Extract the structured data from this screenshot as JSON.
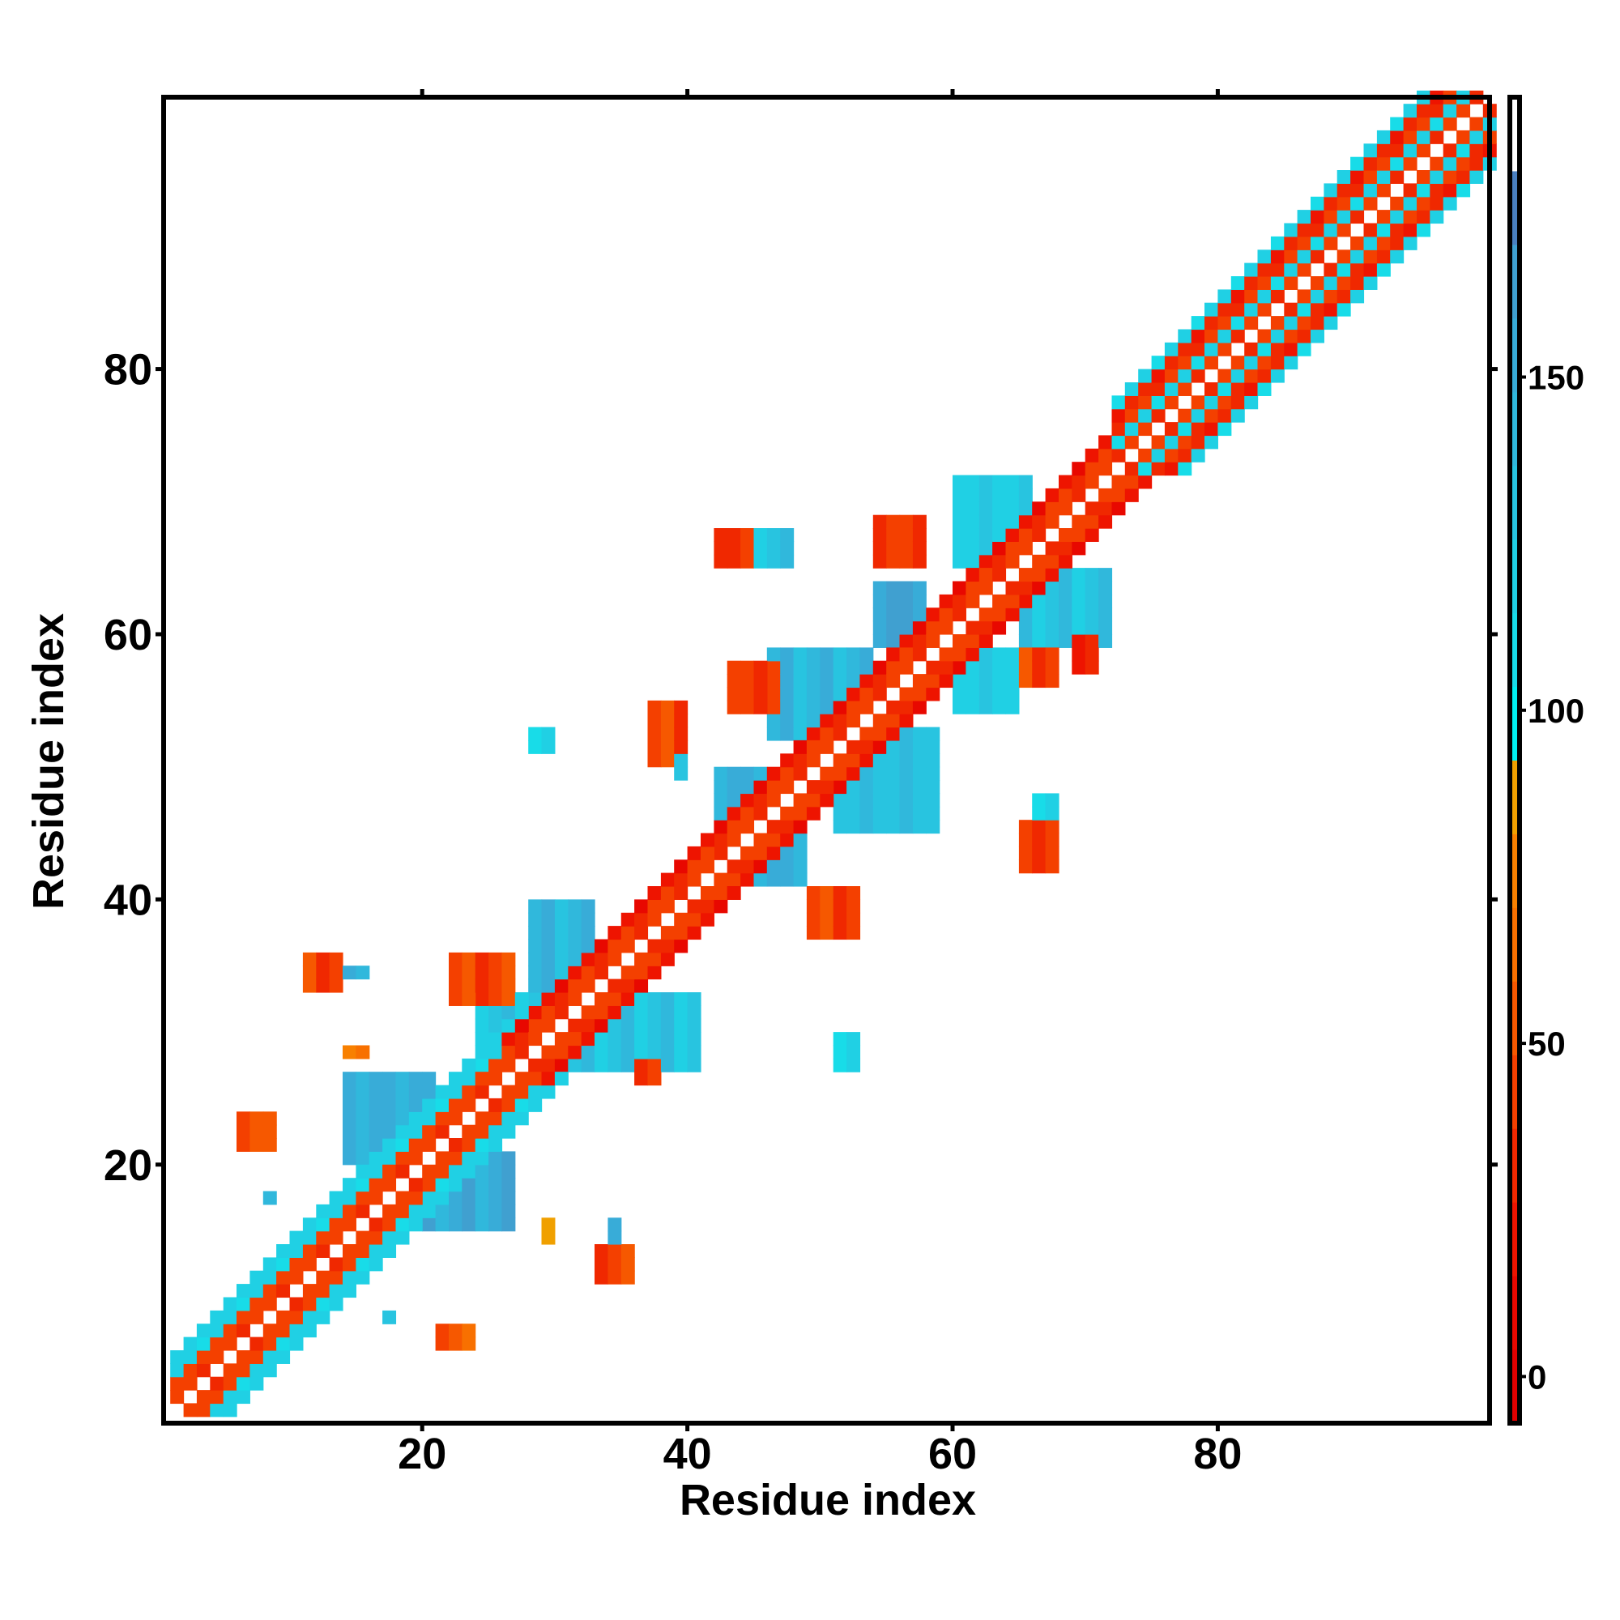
{
  "chart_data": {
    "type": "heatmap",
    "title": "",
    "xlabel": "Residue index",
    "ylabel": "Residue index",
    "xlim": [
      0.5,
      100.5
    ],
    "ylim": [
      0.5,
      100.5
    ],
    "x_ticks": [
      20,
      40,
      60,
      80
    ],
    "y_ticks": [
      20,
      40,
      60,
      80
    ],
    "x_tick_labels": [
      "20",
      "40",
      "60",
      "80"
    ],
    "y_tick_labels": [
      "20",
      "40",
      "60",
      "80"
    ],
    "colorbar": {
      "range": [
        -7,
        192
      ],
      "ticks": [
        0,
        50,
        100,
        150
      ],
      "tick_labels": [
        "0",
        "50",
        "100",
        "150"
      ],
      "colors": [
        "#e00000",
        "#e80800",
        "#ee1400",
        "#f02800",
        "#f44000",
        "#f65800",
        "#f87000",
        "#f88000",
        "#f0a000",
        "#00f0f0",
        "#18dce8",
        "#20d0e4",
        "#28c4e0",
        "#30b8dc",
        "#38acd8",
        "#40a0d0",
        "#4a80c0",
        "#ffffff"
      ]
    },
    "diagonal_bands": [
      {
        "from": 1,
        "to": 26,
        "offset_values": [
          42,
          48,
          118,
          125
        ]
      },
      {
        "from": 26,
        "to": 72,
        "offset_values": [
          40,
          46,
          22
        ]
      },
      {
        "from": 72,
        "to": 100,
        "offset_values": [
          45,
          120,
          46,
          30,
          122
        ]
      }
    ],
    "blocks": [
      {
        "x": [
          14,
          20
        ],
        "y": [
          20,
          26
        ],
        "value": 150
      },
      {
        "x": [
          20,
          26
        ],
        "y": [
          15,
          20
        ],
        "value": 155
      },
      {
        "x": [
          28,
          32
        ],
        "y": [
          30,
          39
        ],
        "value": 140
      },
      {
        "x": [
          24,
          40
        ],
        "y": [
          27,
          32
        ],
        "value": 130
      },
      {
        "x": [
          46,
          53
        ],
        "y": [
          52,
          58
        ],
        "value": 140
      },
      {
        "x": [
          51,
          58
        ],
        "y": [
          45,
          52
        ],
        "value": 135
      },
      {
        "x": [
          60,
          65
        ],
        "y": [
          65,
          71
        ],
        "value": 125
      },
      {
        "x": [
          65,
          71
        ],
        "y": [
          59,
          64
        ],
        "value": 130
      },
      {
        "x": [
          54,
          57
        ],
        "y": [
          59,
          63
        ],
        "value": 160
      },
      {
        "x": [
          60,
          64
        ],
        "y": [
          54,
          58
        ],
        "value": 125
      },
      {
        "x": [
          42,
          48
        ],
        "y": [
          41,
          49
        ],
        "value": 150
      },
      {
        "x": [
          42,
          44
        ],
        "y": [
          65,
          67
        ],
        "value": 35
      },
      {
        "x": [
          45,
          47
        ],
        "y": [
          65,
          67
        ],
        "value": 130
      },
      {
        "x": [
          65,
          67
        ],
        "y": [
          42,
          45
        ],
        "value": 40
      },
      {
        "x": [
          66,
          67
        ],
        "y": [
          46,
          47
        ],
        "value": 120
      },
      {
        "x": [
          11,
          13
        ],
        "y": [
          33,
          35
        ],
        "value": 45
      },
      {
        "x": [
          14,
          15
        ],
        "y": [
          34,
          34
        ],
        "value": 150
      },
      {
        "x": [
          33,
          35
        ],
        "y": [
          11,
          13
        ],
        "value": 45
      },
      {
        "x": [
          6,
          8
        ],
        "y": [
          21,
          23
        ],
        "value": 50
      },
      {
        "x": [
          21,
          23
        ],
        "y": [
          6,
          7
        ],
        "value": 55
      },
      {
        "x": [
          37,
          39
        ],
        "y": [
          50,
          54
        ],
        "value": 45
      },
      {
        "x": [
          39,
          39
        ],
        "y": [
          49,
          50
        ],
        "value": 140
      },
      {
        "x": [
          49,
          52
        ],
        "y": [
          37,
          40
        ],
        "value": 42
      },
      {
        "x": [
          28,
          29
        ],
        "y": [
          51,
          52
        ],
        "value": 110
      },
      {
        "x": [
          51,
          52
        ],
        "y": [
          27,
          29
        ],
        "value": 115
      },
      {
        "x": [
          14,
          15
        ],
        "y": [
          28,
          28
        ],
        "value": 70
      },
      {
        "x": [
          29,
          29
        ],
        "y": [
          14,
          15
        ],
        "value": 75
      },
      {
        "x": [
          34,
          34
        ],
        "y": [
          14,
          15
        ],
        "value": 150
      },
      {
        "x": [
          8,
          8
        ],
        "y": [
          17,
          17
        ],
        "value": 130
      },
      {
        "x": [
          17,
          17
        ],
        "y": [
          8,
          8
        ],
        "value": 125
      },
      {
        "x": [
          22,
          26
        ],
        "y": [
          32,
          35
        ],
        "value": 45
      },
      {
        "x": [
          36,
          37
        ],
        "y": [
          26,
          27
        ],
        "value": 40
      },
      {
        "x": [
          54,
          57
        ],
        "y": [
          65,
          68
        ],
        "value": 40
      },
      {
        "x": [
          65,
          67
        ],
        "y": [
          56,
          58
        ],
        "value": 42
      },
      {
        "x": [
          69,
          70
        ],
        "y": [
          57,
          59
        ],
        "value": 30
      },
      {
        "x": [
          43,
          46
        ],
        "y": [
          54,
          57
        ],
        "value": 40
      }
    ]
  }
}
